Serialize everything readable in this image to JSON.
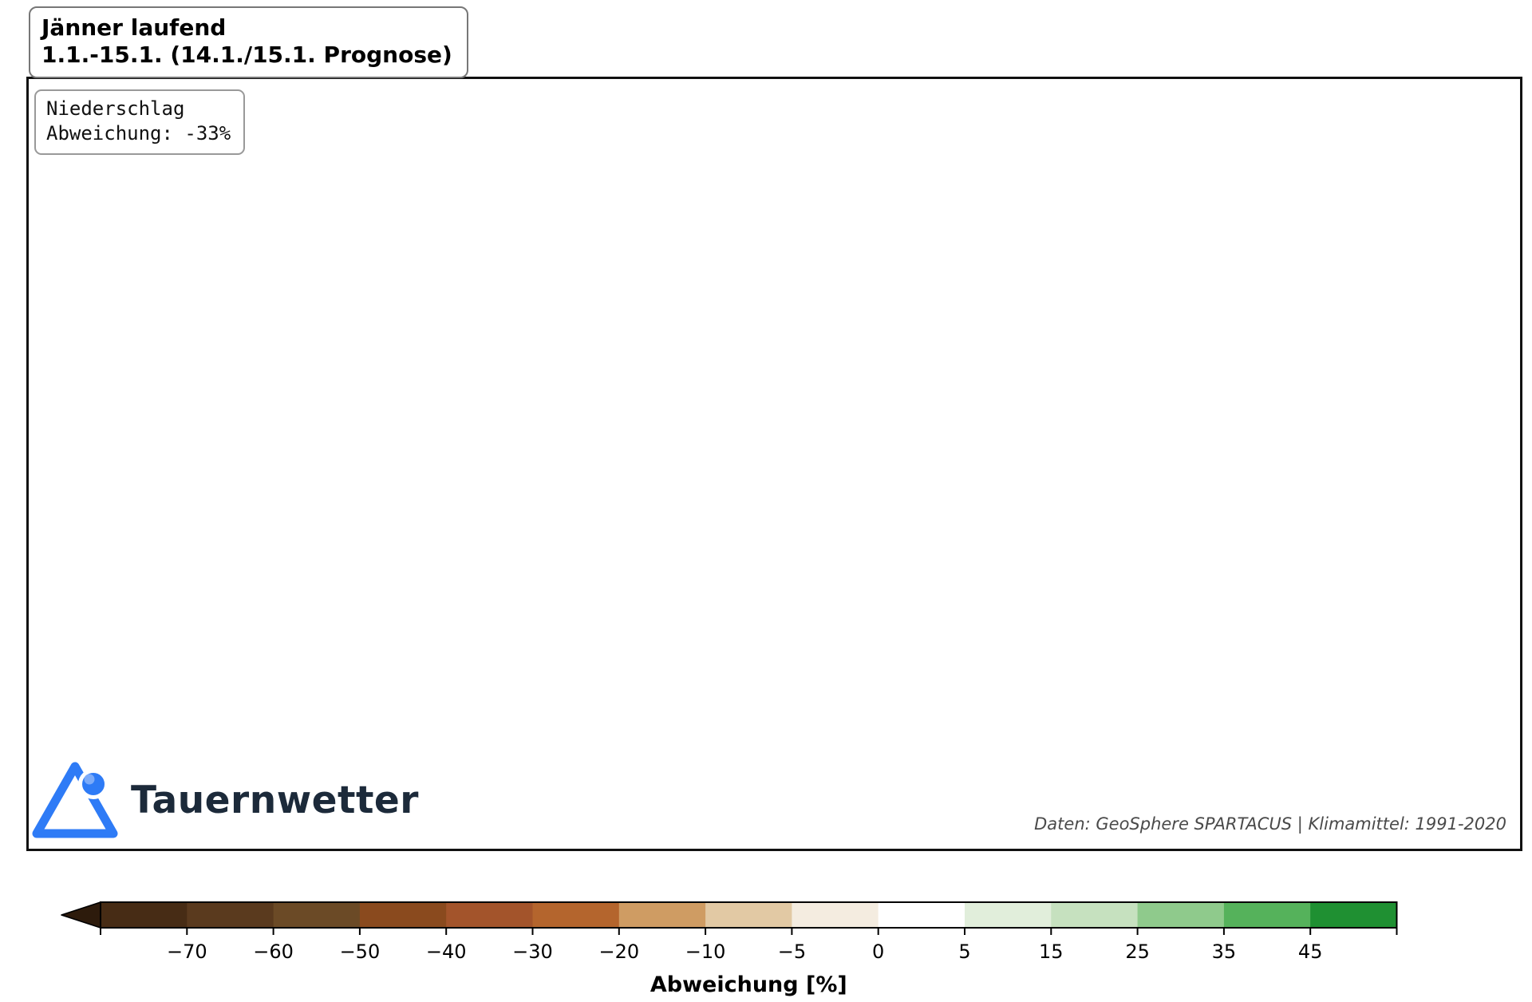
{
  "header": {
    "title_line1": "Jänner laufend",
    "title_line2": "1.1.-15.1. (14.1./15.1. Prognose)"
  },
  "annotation": {
    "line1": "Niederschlag",
    "line2": "Abweichung: -33%"
  },
  "branding": {
    "logo_text": "Tauernwetter",
    "logo_blue": "#2e7bf6",
    "logo_blue_light": "#7dabf8",
    "logo_text_color": "#1c2a3a"
  },
  "attribution": "Daten: GeoSphere SPARTACUS | Klimamittel: 1991-2020",
  "colorbar": {
    "label": "Abweichung [%]",
    "tick_labels": [
      "−70",
      "−60",
      "−50",
      "−40",
      "−30",
      "−20",
      "−10",
      "−5",
      "0",
      "5",
      "15",
      "25",
      "35",
      "45"
    ],
    "segment_colors": [
      "#472c15",
      "#5a3a1e",
      "#6b4a26",
      "#8a4a1e",
      "#a3542b",
      "#b4652d",
      "#cf9c63",
      "#e2c9a4",
      "#f4ece0",
      "#ffffff",
      "#e1eedb",
      "#c6e1bf",
      "#8fca8c",
      "#55b25b",
      "#1f9032"
    ],
    "arrow_color": "#2d1b0c",
    "extend": "min",
    "value_min_label": "−70",
    "value_max_label": "45"
  },
  "map": {
    "anomaly_center_color": "#53ba62",
    "border_color": "#0a0a0a",
    "district_line_color": "#808080"
  }
}
